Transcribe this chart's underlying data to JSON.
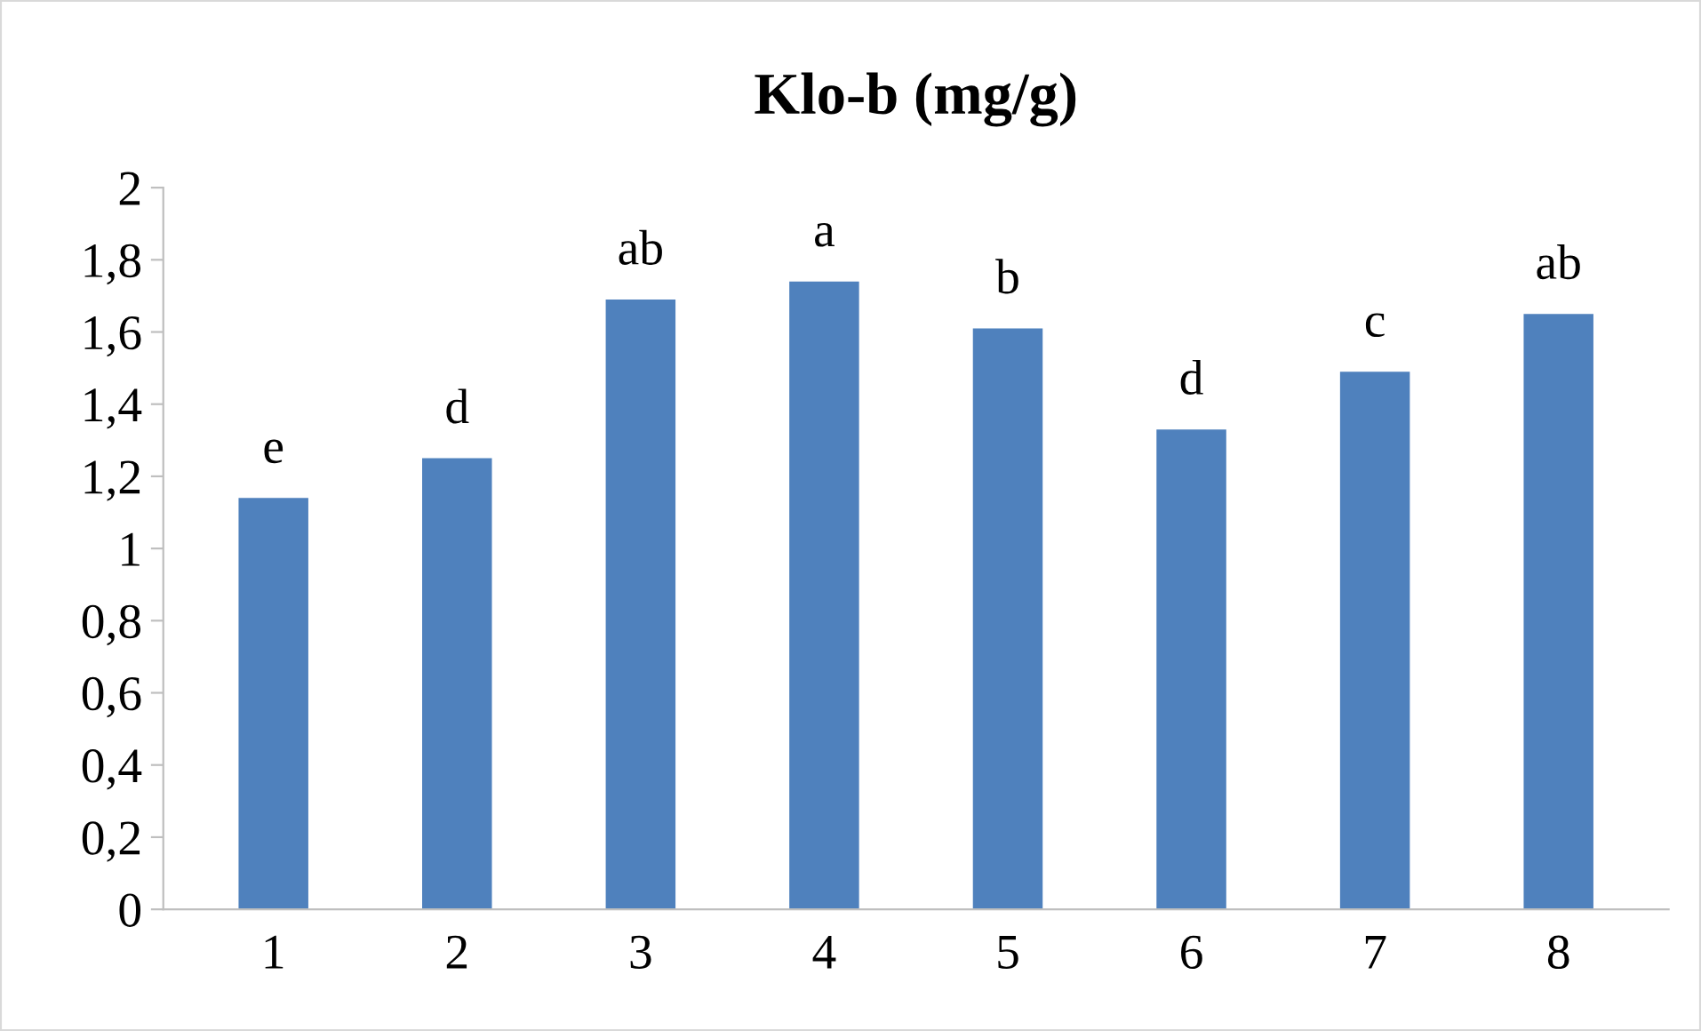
{
  "chart_data": {
    "type": "bar",
    "title": "Klo-b (mg/g)",
    "categories": [
      "1",
      "2",
      "3",
      "4",
      "5",
      "6",
      "7",
      "8"
    ],
    "values": [
      1.14,
      1.25,
      1.69,
      1.74,
      1.61,
      1.33,
      1.49,
      1.65
    ],
    "color": "#4f81bd",
    "ylim": [
      0,
      2
    ],
    "yticks": [
      0,
      {
        "value": 0.2,
        "label": "0,2"
      },
      {
        "value": 0.4,
        "label": "0,4"
      },
      {
        "value": 0.6,
        "label": "0,6"
      },
      {
        "value": 0.8,
        "label": "0,8"
      },
      1,
      {
        "value": 1.2,
        "label": "1,2"
      },
      {
        "value": 1.4,
        "label": "1,4"
      },
      {
        "value": 1.6,
        "label": "1,6"
      },
      {
        "value": 1.8,
        "label": "1,8"
      },
      2
    ],
    "annotations": [
      {
        "text": "e",
        "x": "1",
        "y": 1.14
      },
      {
        "text": "d",
        "x": "2",
        "y": 1.25
      },
      {
        "text": "ab",
        "x": "3",
        "y": 1.69
      },
      {
        "text": "a",
        "x": "4",
        "y": 1.74
      },
      {
        "text": "b",
        "x": "5",
        "y": 1.61
      },
      {
        "text": "d",
        "x": "6",
        "y": 1.33
      },
      {
        "text": "c",
        "x": "7",
        "y": 1.49
      },
      {
        "text": "ab",
        "x": "8",
        "y": 1.65
      }
    ],
    "grid": false,
    "legend": false
  }
}
